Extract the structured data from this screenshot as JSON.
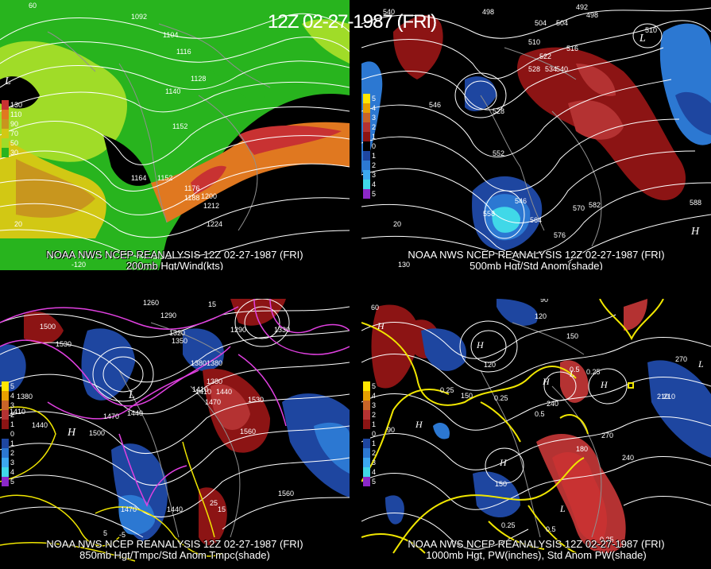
{
  "title": "12Z 02-27-1987 (FRI)",
  "panels": [
    {
      "id": "p200",
      "caption_line1": "NOAA NWS NCEP REANALYSIS 12Z 02-27-1987 (FRI)",
      "caption_line2": "200mb Hgt/Wind(kts)",
      "scale_labels": [
        "130",
        "110",
        "90",
        "70",
        "50",
        "30"
      ],
      "scale_colors": [
        "#c83232",
        "#e07820",
        "#c8961e",
        "#d2c814",
        "#a0dc28",
        "#28b41e"
      ],
      "contour_labels": [
        "1092",
        "1104",
        "1116",
        "1128",
        "1140",
        "1152",
        "1164",
        "1152",
        "1176",
        "1188",
        "1200",
        "1212",
        "1224"
      ],
      "other_labels": [
        "60",
        "20",
        "-120"
      ]
    },
    {
      "id": "p500",
      "caption_line1": "NOAA NWS NCEP REANALYSIS 12Z 02-27-1987 (FRI)",
      "caption_line2": "500mb Hgt/Std Anom(shade)",
      "scale_labels": [
        "5",
        "4",
        "3",
        "2",
        "1",
        "0",
        "1",
        "2",
        "3",
        "4",
        "5"
      ],
      "scale_colors": [
        "#ffe600",
        "#e6a000",
        "#c86428",
        "#b43232",
        "#8c1414",
        "#000000",
        "#1e46a0",
        "#2c78d2",
        "#3ca8f0",
        "#40d8e8",
        "#8c28c8"
      ],
      "contour_labels": [
        "540",
        "498",
        "492",
        "498",
        "504",
        "504",
        "510",
        "516",
        "522",
        "528",
        "534",
        "540",
        "546",
        "528",
        "552",
        "546",
        "558",
        "564",
        "570",
        "576",
        "582",
        "588",
        "510"
      ],
      "other_labels": [
        "20",
        "130"
      ]
    },
    {
      "id": "p850",
      "caption_line1": "NOAA NWS NCEP REANALYSIS 12Z 02-27-1987 (FRI)",
      "caption_line2": "850mb Hgt/Tmpc/Std Anom Tmpc(shade)",
      "scale_labels": [
        "5",
        "4",
        "3",
        "2",
        "1",
        "0",
        "1",
        "2",
        "3",
        "4",
        "5"
      ],
      "scale_colors": [
        "#ffe600",
        "#e6a000",
        "#c86428",
        "#b43232",
        "#8c1414",
        "#000000",
        "#1e46a0",
        "#2c78d2",
        "#3ca8f0",
        "#40d8e8",
        "#8c28c8"
      ],
      "contour_labels": [
        "1260",
        "1290",
        "1320",
        "1350",
        "1380",
        "1500",
        "1530",
        "1380",
        "1410",
        "1440",
        "1470",
        "1440",
        "1410",
        "1380",
        "1410",
        "1440",
        "1470",
        "1500",
        "1530",
        "1560",
        "1470",
        "1440",
        "1560",
        "1380",
        "1290",
        "1330"
      ],
      "other_labels": [
        "25",
        "15",
        "5",
        "-5",
        "15"
      ]
    },
    {
      "id": "p1000",
      "caption_line1": "NOAA NWS NCEP REANALYSIS 12Z 02-27-1987 (FRI)",
      "caption_line2": "1000mb Hgt, PW(inches), Std Anom PW(shade)",
      "scale_labels": [
        "5",
        "4",
        "3",
        "2",
        "1",
        "0",
        "1",
        "2",
        "3",
        "4",
        "5"
      ],
      "scale_colors": [
        "#ffe600",
        "#e6a000",
        "#c86428",
        "#b43232",
        "#8c1414",
        "#000000",
        "#1e46a0",
        "#2c78d2",
        "#3ca8f0",
        "#40d8e8",
        "#8c28c8"
      ],
      "contour_labels": [
        "60",
        "90",
        "120",
        "150",
        "210",
        "270",
        "240",
        "150",
        "90",
        "180",
        "240",
        "270",
        "210",
        "150",
        "120",
        "0.25",
        "0.25",
        "0.5",
        "0.25",
        "0.5",
        "0.25",
        "0.5",
        "0.25"
      ],
      "other_labels": [
        "H",
        "L"
      ]
    }
  ],
  "symbols": {
    "high": "H",
    "low": "L"
  },
  "colors": {
    "contour": "#ffffff",
    "temp": "#e040e0",
    "pw": "#f0e600",
    "coast": "#909090"
  }
}
